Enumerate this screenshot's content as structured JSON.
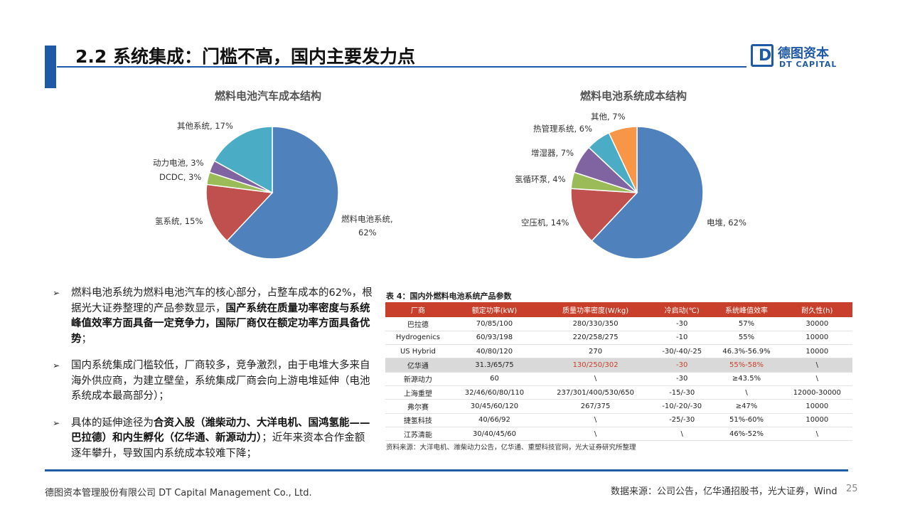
{
  "header": {
    "title": "2.2 系统集成：门槛不高，国内主要发力点",
    "logo_cn": "德图资本",
    "logo_en": "DT CAPITAL",
    "accent": "#1f5aa6"
  },
  "chart_data": [
    {
      "type": "pie",
      "title": "燃料电池汽车成本结构",
      "slices": [
        {
          "label": "燃料电池系统,",
          "label2": "62%",
          "value": 62,
          "color": "#4f81bd"
        },
        {
          "label": "氢系统, 15%",
          "value": 15,
          "color": "#c0504d"
        },
        {
          "label": "DCDC, 3%",
          "value": 3,
          "color": "#9bbb59"
        },
        {
          "label": "动力电池, 3%",
          "value": 3,
          "color": "#8064a2"
        },
        {
          "label": "其他系统, 17%",
          "value": 17,
          "color": "#4bacc6"
        }
      ]
    },
    {
      "type": "pie",
      "title": "燃料电池系统成本结构",
      "slices": [
        {
          "label": "电堆, 62%",
          "value": 62,
          "color": "#4f81bd"
        },
        {
          "label": "空压机, 14%",
          "value": 14,
          "color": "#c0504d"
        },
        {
          "label": "氢循环泵, 4%",
          "value": 4,
          "color": "#9bbb59"
        },
        {
          "label": "增湿器, 7%",
          "value": 7,
          "color": "#8064a2"
        },
        {
          "label": "热管理系统, 6%",
          "value": 6,
          "color": "#4bacc6"
        },
        {
          "label": "其他, 7%",
          "value": 7,
          "color": "#f79646"
        }
      ]
    }
  ],
  "bullets": [
    {
      "parts": [
        {
          "text": "燃料电池系统为燃料电池汽车的核心部分，占整车成本的62%，根据光大证券整理的产品参数显示，",
          "bold": false
        },
        {
          "text": "国产系统在质量功率密度与系统峰值效率方面具备一定竞争力，国际厂商仅在额定功率方面具备优势",
          "bold": true
        },
        {
          "text": "；",
          "bold": false
        }
      ]
    },
    {
      "parts": [
        {
          "text": "国内系统集成门槛较低，厂商较多，竞争激烈，由于电堆大多来自海外供应商，为建立壁垒，系统集成厂商会向上游电堆延伸（电池系统成本最高部分）；",
          "bold": false
        }
      ]
    },
    {
      "parts": [
        {
          "text": "具体的延伸途径为",
          "bold": false
        },
        {
          "text": "合资入股（潍柴动力、大洋电机、国鸿氢能——巴拉德）和内生孵化（亿华通、新源动力）",
          "bold": true
        },
        {
          "text": "；近年来资本合作金额逐年攀升，导致国内系统成本较难下降；",
          "bold": false
        }
      ]
    }
  ],
  "bullet_marker": "➢",
  "table": {
    "caption": "表 4：国内外燃料电池系统产品参数",
    "header_color": "#c8402b",
    "columns": [
      "厂商",
      "额定功率(kW)",
      "质量功率密度(W/kg)",
      "冷启动(℃)",
      "系统峰值效率",
      "耐久性(h)"
    ],
    "rows": [
      [
        "巴拉德",
        "70/85/100",
        "280/330/350",
        "-30",
        "57%",
        "30000"
      ],
      [
        "Hydrogenics",
        "60/93/198",
        "220/258/275",
        "-10",
        "55%",
        "10000"
      ],
      [
        "US Hybrid",
        "40/80/120",
        "270",
        "-30/-40/-25",
        "46.3%-56.9%",
        "10000"
      ],
      [
        "亿华通",
        "31.3/65/75",
        "130/250/302",
        "-30",
        "55%-58%",
        "\\"
      ],
      [
        "新源动力",
        "60",
        "\\",
        "-30",
        "≥43.5%",
        "\\"
      ],
      [
        "上海重塑",
        "32/46/60/80/110",
        "237/301/400/530/650",
        "-15/-30",
        "\\",
        "12000-30000"
      ],
      [
        "弗尔赛",
        "30/45/60/120",
        "267/375",
        "-10/-20/-30",
        "≥47%",
        "10000"
      ],
      [
        "捷氢科技",
        "40/66/92",
        "\\",
        "-25/-30",
        "51%-60%",
        "10000"
      ],
      [
        "江苏清能",
        "30/40/45/60",
        "\\",
        "\\",
        "46%-52%",
        "\\"
      ]
    ],
    "highlight_row": 3,
    "source": "资料来源：大洋电机、潍柴动力公告，亿华通、重塑科技官网，光大证券研究所整理"
  },
  "footer": {
    "company": "德图资本管理股份有限公司  DT Capital Management  Co., Ltd.",
    "source": "数据来源：公司公告，亿华通招股书，光大证券，Wind",
    "page": "25"
  }
}
